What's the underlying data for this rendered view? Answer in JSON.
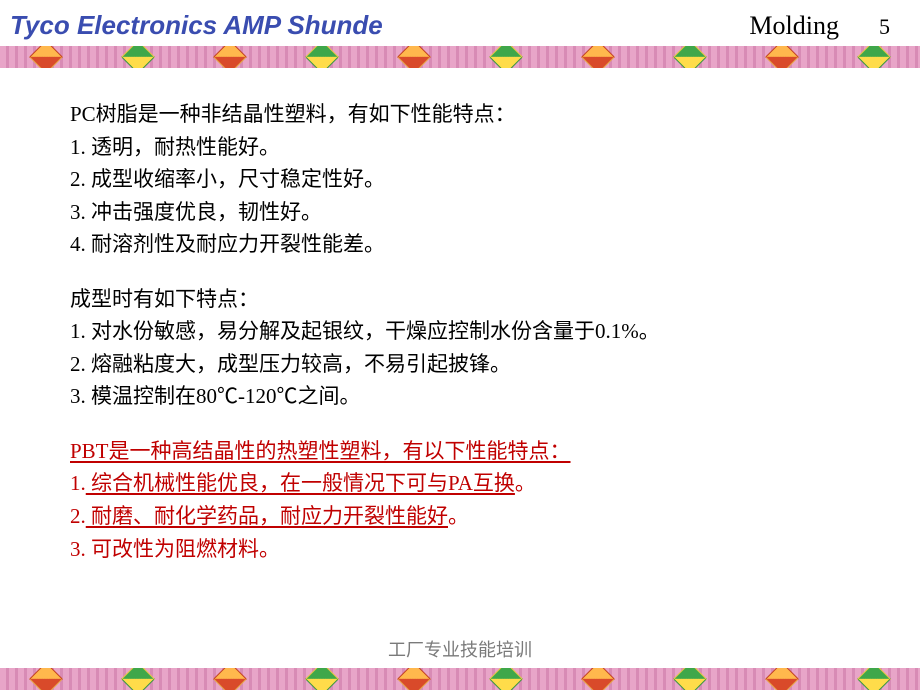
{
  "header": {
    "company": "Tyco Electronics AMP Shunde",
    "section": "Molding",
    "page": "5"
  },
  "colors": {
    "header_company": "#3a4db0",
    "body_text": "#000000",
    "pbt_text": "#c00000",
    "footer_text": "#7a7a7a",
    "band_bg_a": "#e8a5c8",
    "band_bg_b": "#d88bb5",
    "diamond_orange": "#ffb84d",
    "diamond_red": "#d94a2a",
    "diamond_green": "#3fa74a",
    "diamond_yellow": "#ffdc4a",
    "background": "#ffffff"
  },
  "typography": {
    "header_company_fontsize": 26,
    "header_section_fontsize": 26,
    "page_num_fontsize": 22,
    "body_fontsize": 21,
    "footer_fontsize": 18,
    "body_line_height": 1.55
  },
  "pc_section": {
    "intro": "PC树脂是一种非结晶性塑料，有如下性能特点：",
    "items": [
      "1.  透明，耐热性能好。",
      "2.  成型收缩率小，尺寸稳定性好。",
      "3.  冲击强度优良，韧性好。",
      "4.  耐溶剂性及耐应力开裂性能差。"
    ]
  },
  "molding_section": {
    "intro": "成型时有如下特点：",
    "items": [
      "1.  对水份敏感，易分解及起银纹，干燥应控制水份含量于0.1%。",
      "2.  熔融粘度大，成型压力较高，不易引起披锋。",
      "3.  模温控制在80℃-120℃之间。"
    ]
  },
  "pbt_section": {
    "intro": "PBT是一种高结晶性的热塑性塑料，有以下性能特点：",
    "items": [
      {
        "num": "1.",
        "text": " 综合机械性能优良，在一般情况下可与PA互换",
        "underline": true,
        "tail": "。"
      },
      {
        "num": "2.",
        "text": " 耐磨、耐化学药品，耐应力开裂性能好",
        "underline": true,
        "tail": "。"
      },
      {
        "num": "3.",
        "text": " 可改性为阻燃材料。",
        "underline": false,
        "tail": ""
      }
    ]
  },
  "footer": "工厂专业技能培训",
  "decor": {
    "diamond_count": 10,
    "pattern": [
      "down",
      "up",
      "down",
      "up",
      "down",
      "up",
      "down",
      "up",
      "down",
      "up"
    ]
  }
}
